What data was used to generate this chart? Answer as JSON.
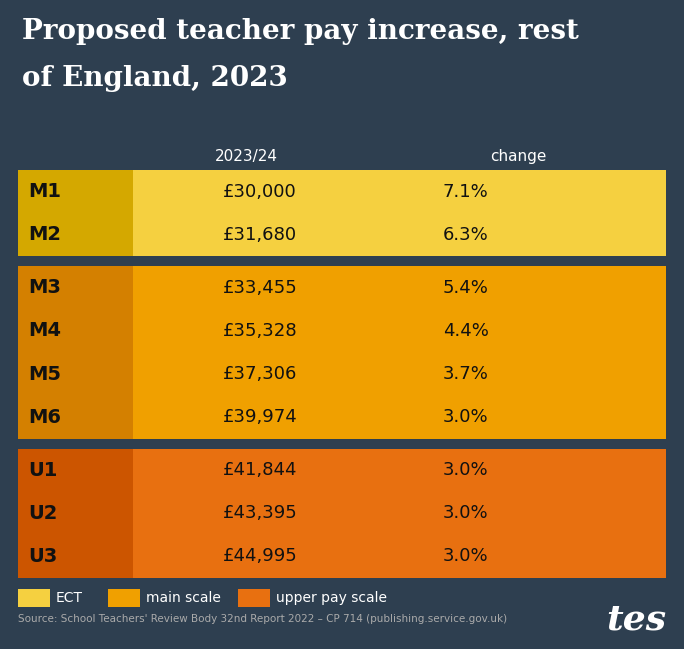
{
  "title_line1": "Proposed teacher pay increase, rest",
  "title_line2": "of England, 2023",
  "background_color": "#2e3f50",
  "title_color": "#ffffff",
  "col_header_2023": "2023/24",
  "col_header_change": "change",
  "col_header_color": "#ffffff",
  "rows": [
    {
      "label": "M1",
      "value": "£30,000",
      "change": "7.1%",
      "group": "ECT"
    },
    {
      "label": "M2",
      "value": "£31,680",
      "change": "6.3%",
      "group": "ECT"
    },
    {
      "label": "M3",
      "value": "£33,455",
      "change": "5.4%",
      "group": "main"
    },
    {
      "label": "M4",
      "value": "£35,328",
      "change": "4.4%",
      "group": "main"
    },
    {
      "label": "M5",
      "value": "£37,306",
      "change": "3.7%",
      "group": "main"
    },
    {
      "label": "M6",
      "value": "£39,974",
      "change": "3.0%",
      "group": "main"
    },
    {
      "label": "U1",
      "value": "£41,844",
      "change": "3.0%",
      "group": "upper"
    },
    {
      "label": "U2",
      "value": "£43,395",
      "change": "3.0%",
      "group": "upper"
    },
    {
      "label": "U3",
      "value": "£44,995",
      "change": "3.0%",
      "group": "upper"
    }
  ],
  "group_colors": {
    "ECT": {
      "label_bg": "#d4a800",
      "row_bg": "#f5d040"
    },
    "main": {
      "label_bg": "#d48000",
      "row_bg": "#f0a000"
    },
    "upper": {
      "label_bg": "#cc5500",
      "row_bg": "#e87010"
    }
  },
  "legend_items": [
    {
      "label": "ECT",
      "color": "#f5d040"
    },
    {
      "label": "main scale",
      "color": "#f0a000"
    },
    {
      "label": "upper pay scale",
      "color": "#e87010"
    }
  ],
  "source_text": "Source: School Teachers' Review Body 32nd Report 2022 – CP 714 (publishing.service.gov.uk)"
}
